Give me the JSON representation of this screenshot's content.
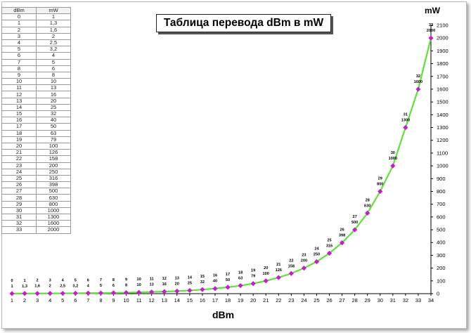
{
  "title": "Таблица перевода dBm в mW",
  "table": {
    "headers": [
      "dBm",
      "mW"
    ],
    "rows": [
      [
        "0",
        "1"
      ],
      [
        "1",
        "1,3"
      ],
      [
        "2",
        "1,6"
      ],
      [
        "3",
        "2"
      ],
      [
        "4",
        "2,5"
      ],
      [
        "5",
        "3,2"
      ],
      [
        "6",
        "4"
      ],
      [
        "7",
        "5"
      ],
      [
        "8",
        "6"
      ],
      [
        "9",
        "8"
      ],
      [
        "10",
        "10"
      ],
      [
        "11",
        "13"
      ],
      [
        "12",
        "16"
      ],
      [
        "13",
        "20"
      ],
      [
        "14",
        "25"
      ],
      [
        "15",
        "32"
      ],
      [
        "16",
        "40"
      ],
      [
        "17",
        "50"
      ],
      [
        "18",
        "63"
      ],
      [
        "19",
        "79"
      ],
      [
        "20",
        "100"
      ],
      [
        "21",
        "126"
      ],
      [
        "22",
        "158"
      ],
      [
        "23",
        "200"
      ],
      [
        "24",
        "250"
      ],
      [
        "25",
        "316"
      ],
      [
        "26",
        "398"
      ],
      [
        "27",
        "500"
      ],
      [
        "28",
        "630"
      ],
      [
        "29",
        "800"
      ],
      [
        "30",
        "1000"
      ],
      [
        "31",
        "1300"
      ],
      [
        "32",
        "1600"
      ],
      [
        "33",
        "2000"
      ]
    ]
  },
  "colors": {
    "line": "#5fe03a",
    "marker": "#cc19cc",
    "grid": "none"
  },
  "chart_data": {
    "type": "line",
    "title": "Таблица перевода dBm в mW",
    "xlabel": "dBm",
    "ylabel": "mW",
    "x_ticks": [
      "1",
      "2",
      "3",
      "4",
      "5",
      "6",
      "7",
      "8",
      "9",
      "10",
      "11",
      "12",
      "13",
      "14",
      "15",
      "16",
      "17",
      "18",
      "19",
      "20",
      "21",
      "22",
      "23",
      "24",
      "25",
      "26",
      "27",
      "28",
      "29",
      "30",
      "31",
      "32",
      "33",
      "34"
    ],
    "y_ticks": [
      "0",
      "100",
      "200",
      "300",
      "400",
      "500",
      "600",
      "700",
      "800",
      "900",
      "1000",
      "1100",
      "1200",
      "1300",
      "1400",
      "1500",
      "1600",
      "1700",
      "1800",
      "1900",
      "2000",
      "2100"
    ],
    "xlim": [
      1,
      34
    ],
    "ylim": [
      0,
      2100
    ],
    "grid": false,
    "series": [
      {
        "x": [
          1,
          2,
          3,
          4,
          5,
          6,
          7,
          8,
          9,
          10,
          11,
          12,
          13,
          14,
          15,
          16,
          17,
          18,
          19,
          20,
          21,
          22,
          23,
          24,
          25,
          26,
          27,
          28,
          29,
          30,
          31,
          32,
          33,
          34
        ],
        "values": [
          1,
          1.3,
          1.6,
          2,
          2.5,
          3.2,
          4,
          5,
          6,
          8,
          10,
          13,
          16,
          20,
          25,
          32,
          40,
          50,
          63,
          79,
          100,
          126,
          158,
          200,
          250,
          316,
          398,
          500,
          630,
          800,
          1000,
          1300,
          1600,
          2000
        ],
        "point_labels_dbm": [
          "0",
          "1",
          "2",
          "3",
          "4",
          "5",
          "6",
          "7",
          "8",
          "9",
          "10",
          "11",
          "12",
          "13",
          "14",
          "15",
          "16",
          "17",
          "18",
          "19",
          "20",
          "21",
          "22",
          "23",
          "24",
          "25",
          "26",
          "27",
          "28",
          "29",
          "30",
          "31",
          "32",
          "33"
        ],
        "point_labels_mw": [
          "1",
          "1,3",
          "1,6",
          "2",
          "2,5",
          "3,2",
          "4",
          "5",
          "6",
          "8",
          "10",
          "13",
          "16",
          "20",
          "25",
          "32",
          "40",
          "50",
          "63",
          "79",
          "100",
          "126",
          "158",
          "200",
          "250",
          "316",
          "398",
          "500",
          "630",
          "800",
          "1000",
          "1300",
          "1600",
          "2000"
        ]
      }
    ]
  }
}
